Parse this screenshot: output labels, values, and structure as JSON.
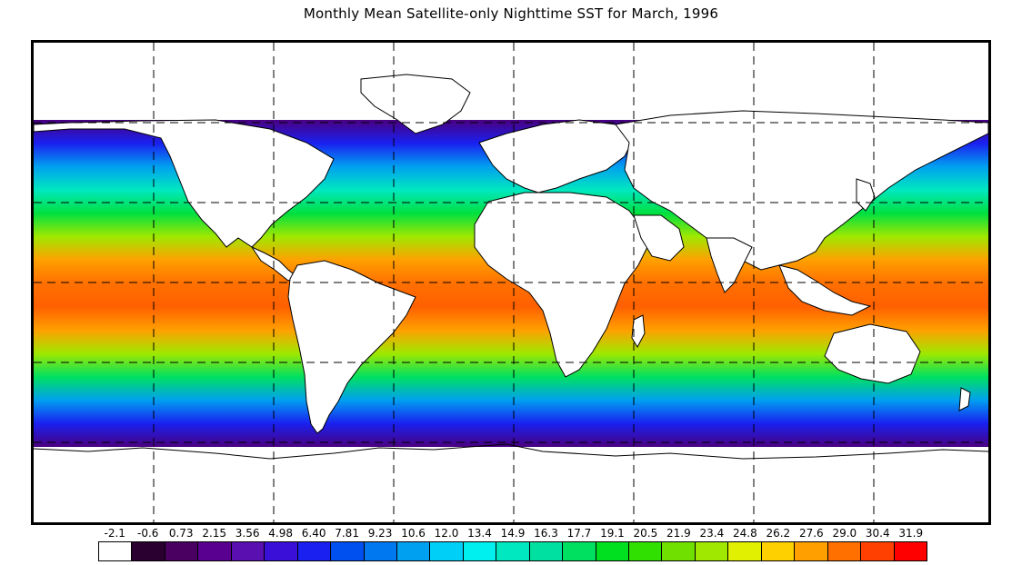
{
  "title": "Monthly Mean Satellite-only Nighttime SST for March, 1996",
  "legend": {
    "labels": [
      "-2.1",
      "-0.6",
      "0.73",
      "2.15",
      "3.56",
      "4.98",
      "6.40",
      "7.81",
      "9.23",
      "10.6",
      "12.0",
      "13.4",
      "14.9",
      "16.3",
      "17.7",
      "19.1",
      "20.5",
      "21.9",
      "23.4",
      "24.8",
      "26.2",
      "27.6",
      "29.0",
      "30.4",
      "31.9"
    ],
    "colors": [
      "#ffffff",
      "#2a0030",
      "#4a0060",
      "#5a0090",
      "#5a10b0",
      "#3a10d8",
      "#1a20f0",
      "#0050f0",
      "#0078f0",
      "#00a0f0",
      "#00d0f8",
      "#00f0f0",
      "#00e8c0",
      "#00e0a0",
      "#00e060",
      "#00e020",
      "#30e000",
      "#70e000",
      "#a0e800",
      "#e0f000",
      "#ffd000",
      "#ffa000",
      "#ff7000",
      "#ff4000",
      "#ff0000"
    ]
  },
  "map": {
    "band_colors": [
      "#4a0080",
      "#1a20f0",
      "#00a0f0",
      "#00e8c0",
      "#00e040",
      "#a0e800",
      "#ffa000",
      "#ff7000",
      "#ff6000",
      "#ffa000",
      "#a0e800",
      "#00e060",
      "#00a0f0",
      "#1a20f0",
      "#4a0080"
    ]
  }
}
